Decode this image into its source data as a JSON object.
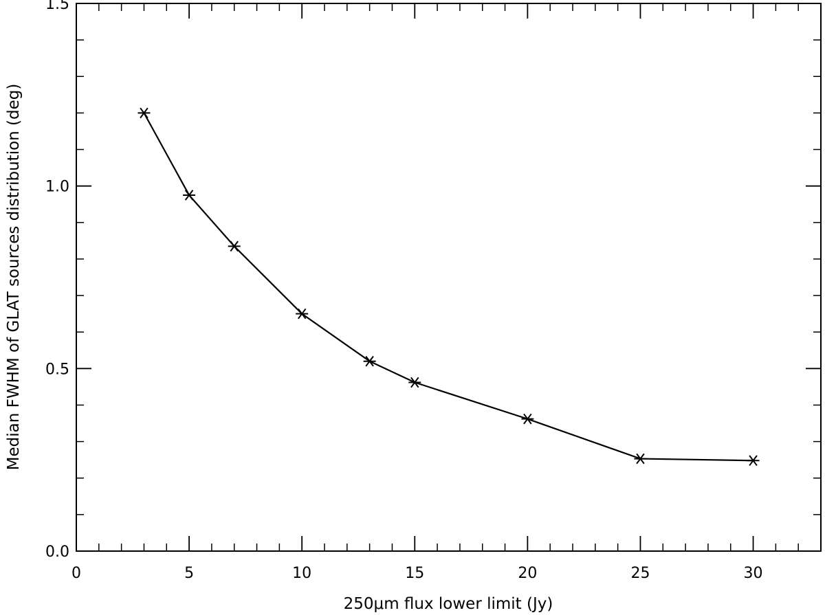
{
  "chart_data": {
    "type": "line",
    "title": "",
    "xlabel": "250μm flux lower limit (Jy)",
    "ylabel": "Median FWHM of GLAT sources distribution (deg)",
    "xlim": [
      0,
      33
    ],
    "ylim": [
      0.0,
      1.5
    ],
    "xticks": [
      0,
      5,
      10,
      15,
      20,
      25,
      30
    ],
    "xtick_labels": [
      "0",
      "5",
      "10",
      "15",
      "20",
      "25",
      "30"
    ],
    "yticks": [
      0.0,
      0.5,
      1.0,
      1.5
    ],
    "ytick_labels": [
      "0.0",
      "0.5",
      "1.0",
      "1.5"
    ],
    "x_minor_step": 1,
    "y_minor_step": 0.1,
    "grid": false,
    "marker": "asterisk",
    "series": [
      {
        "x": [
          3,
          5,
          7,
          10,
          13,
          15,
          20,
          25,
          30
        ],
        "values": [
          1.2,
          0.975,
          0.835,
          0.65,
          0.52,
          0.462,
          0.362,
          0.253,
          0.248
        ]
      }
    ]
  }
}
